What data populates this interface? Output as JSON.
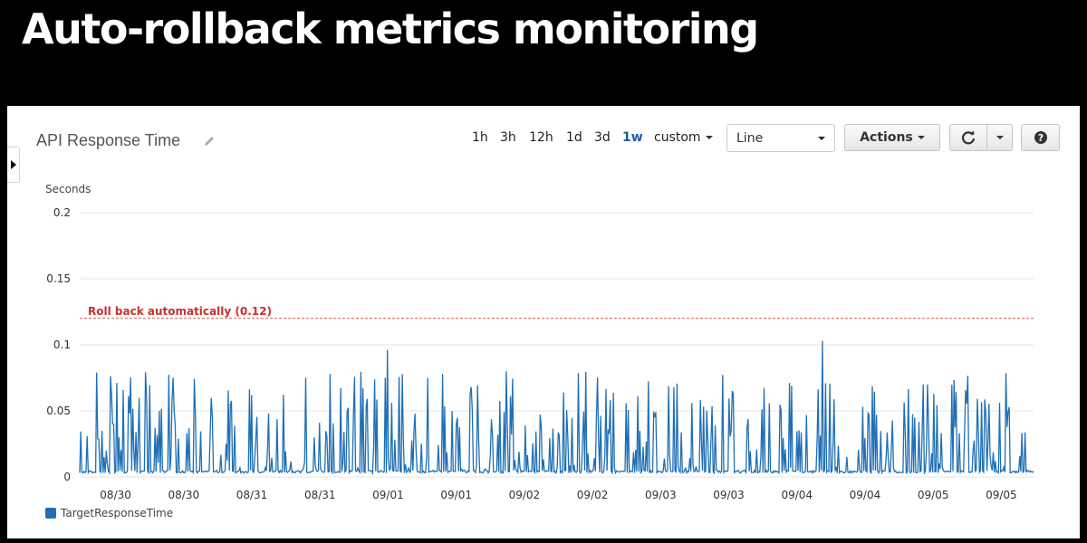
{
  "slide": {
    "title": "Auto-rollback metrics monitoring"
  },
  "panel": {
    "title": "API Response Time",
    "time_ranges": [
      "1h",
      "3h",
      "12h",
      "1d",
      "3d",
      "1w",
      "custom"
    ],
    "active_range": "1w",
    "chart_style": "Line",
    "actions_label": "Actions",
    "icons": {
      "edit": "pencil-icon",
      "refresh": "refresh-icon",
      "dropdown": "chevron-down-icon",
      "help": "help-icon",
      "sidebar": "caret-right-icon"
    }
  },
  "chart_data": {
    "type": "line",
    "ylabel": "Seconds",
    "ylim": [
      0,
      0.2
    ],
    "yticks": [
      "0",
      "0.05",
      "0.1",
      "0.15",
      "0.2"
    ],
    "xtick_labels": [
      "08/30",
      "08/30",
      "08/31",
      "08/31",
      "09/01",
      "09/01",
      "09/02",
      "09/02",
      "09/03",
      "09/03",
      "09/04",
      "09/04",
      "09/05",
      "09/05"
    ],
    "threshold": {
      "value": 0.12,
      "label": "Roll back automatically (0.12)",
      "color": "#d9534f"
    },
    "series": [
      {
        "name": "TargetResponseTime",
        "color": "#1f6fb5",
        "approx_baseline": 0.003,
        "typical_spike_range": [
          0.03,
          0.08
        ],
        "max": 0.103
      }
    ],
    "legend_position": "bottom-left",
    "grid": true
  }
}
